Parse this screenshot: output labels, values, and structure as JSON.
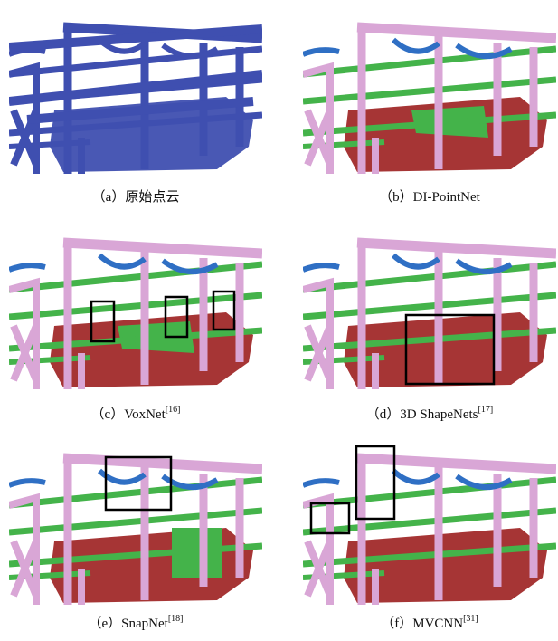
{
  "figure": {
    "panels": [
      {
        "caption": "（a）原始点云"
      },
      {
        "caption": "（b）DI-PointNet"
      },
      {
        "caption": "（c）VoxNet",
        "ref": "[16]"
      },
      {
        "caption": "（d）3D ShapeNets",
        "ref": "[17]"
      },
      {
        "caption": "（e）SnapNet",
        "ref": "[18]"
      },
      {
        "caption": "（f）MVCNN",
        "ref": "[31]"
      }
    ]
  }
}
